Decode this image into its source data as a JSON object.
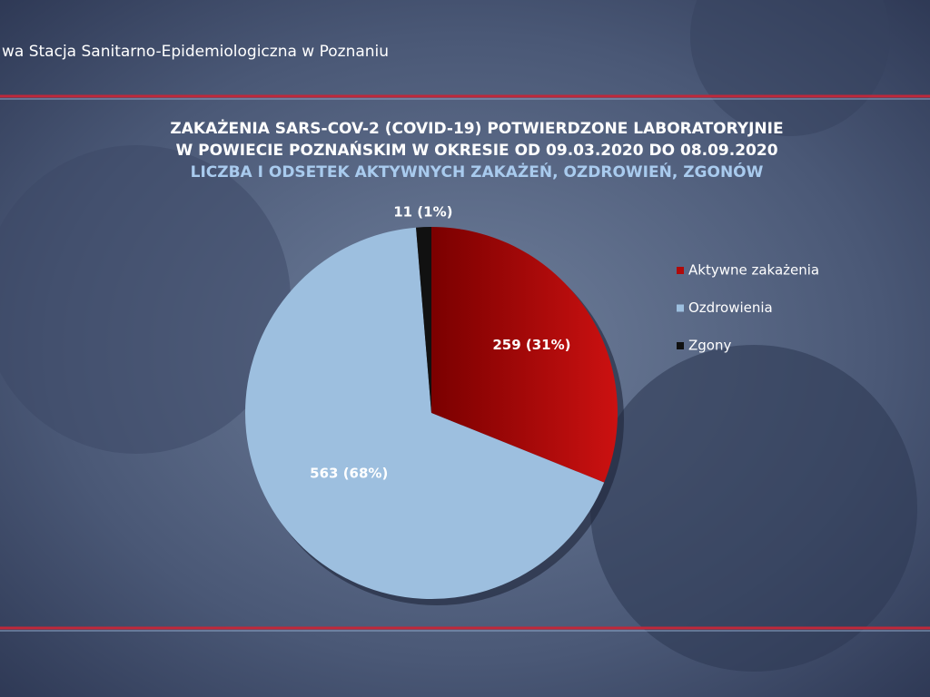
{
  "header": {
    "text": "wa Stacja Sanitarno-Epidemiologiczna w Poznaniu"
  },
  "chart_data": {
    "type": "pie",
    "title": [
      "ZAKAŻENIA SARS-COV-2 (COVID-19) POTWIERDZONE LABORATORYJNIE",
      "W POWIECIE POZNAŃSKIM W OKRESIE OD 09.03.2020 DO 08.09.2020"
    ],
    "subtitle": "LICZBA I ODSETEK AKTYWNYCH ZAKAŻEŃ, OZDROWIEŃ, ZGONÓW",
    "categories": [
      "Aktywne zakażenia",
      "Ozdrowienia",
      "Zgony"
    ],
    "values": [
      259,
      563,
      11
    ],
    "value_labels": [
      "259 (31%)",
      "563 (68%)",
      "11 (1%)"
    ],
    "colors": [
      "#b00a0a",
      "#9dbfdf",
      "#111111"
    ],
    "legend": "right"
  }
}
